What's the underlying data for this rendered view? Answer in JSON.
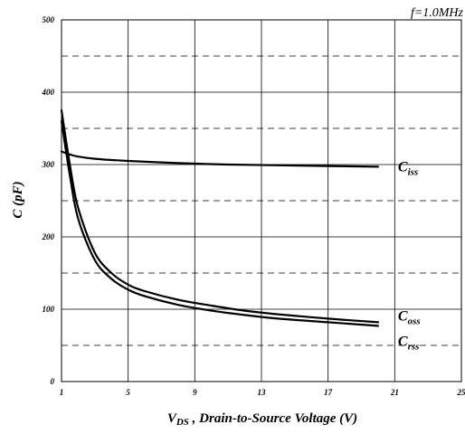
{
  "chart_data": {
    "type": "line",
    "annotation": "f=1.0MHz",
    "xlabel": {
      "main": "V",
      "sub": "DS",
      "rest": " , Drain-to-Source Voltage (V)"
    },
    "ylabel": "C (pF)",
    "xlim": [
      1,
      25
    ],
    "ylim": [
      0,
      500
    ],
    "x_ticks": [
      1,
      5,
      9,
      13,
      17,
      21,
      25
    ],
    "y_ticks": [
      0,
      100,
      200,
      300,
      400,
      500
    ],
    "dashed_grid_y": [
      50,
      150,
      250,
      350,
      450
    ],
    "grid": true,
    "series": [
      {
        "name": "Ciss",
        "label_main": "C",
        "label_sub": "iss",
        "x": [
          1,
          1.5,
          2,
          3,
          5,
          8,
          11,
          14,
          17,
          20
        ],
        "values": [
          318,
          314,
          311,
          308,
          305,
          302,
          300,
          299,
          298,
          297
        ]
      },
      {
        "name": "Coss",
        "label_main": "C",
        "label_sub": "oss",
        "x": [
          1,
          1.5,
          2,
          3,
          4,
          5,
          6,
          8,
          10,
          12,
          14,
          17,
          20
        ],
        "values": [
          375,
          300,
          240,
          178,
          150,
          134,
          125,
          113,
          105,
          98,
          93,
          87,
          82
        ]
      },
      {
        "name": "Crss",
        "label_main": "C",
        "label_sub": "rss",
        "x": [
          1,
          1.5,
          2,
          3,
          4,
          5,
          6,
          8,
          10,
          12,
          14,
          17,
          20
        ],
        "values": [
          360,
          285,
          225,
          168,
          142,
          127,
          118,
          106,
          98,
          92,
          87,
          82,
          77
        ]
      }
    ]
  }
}
